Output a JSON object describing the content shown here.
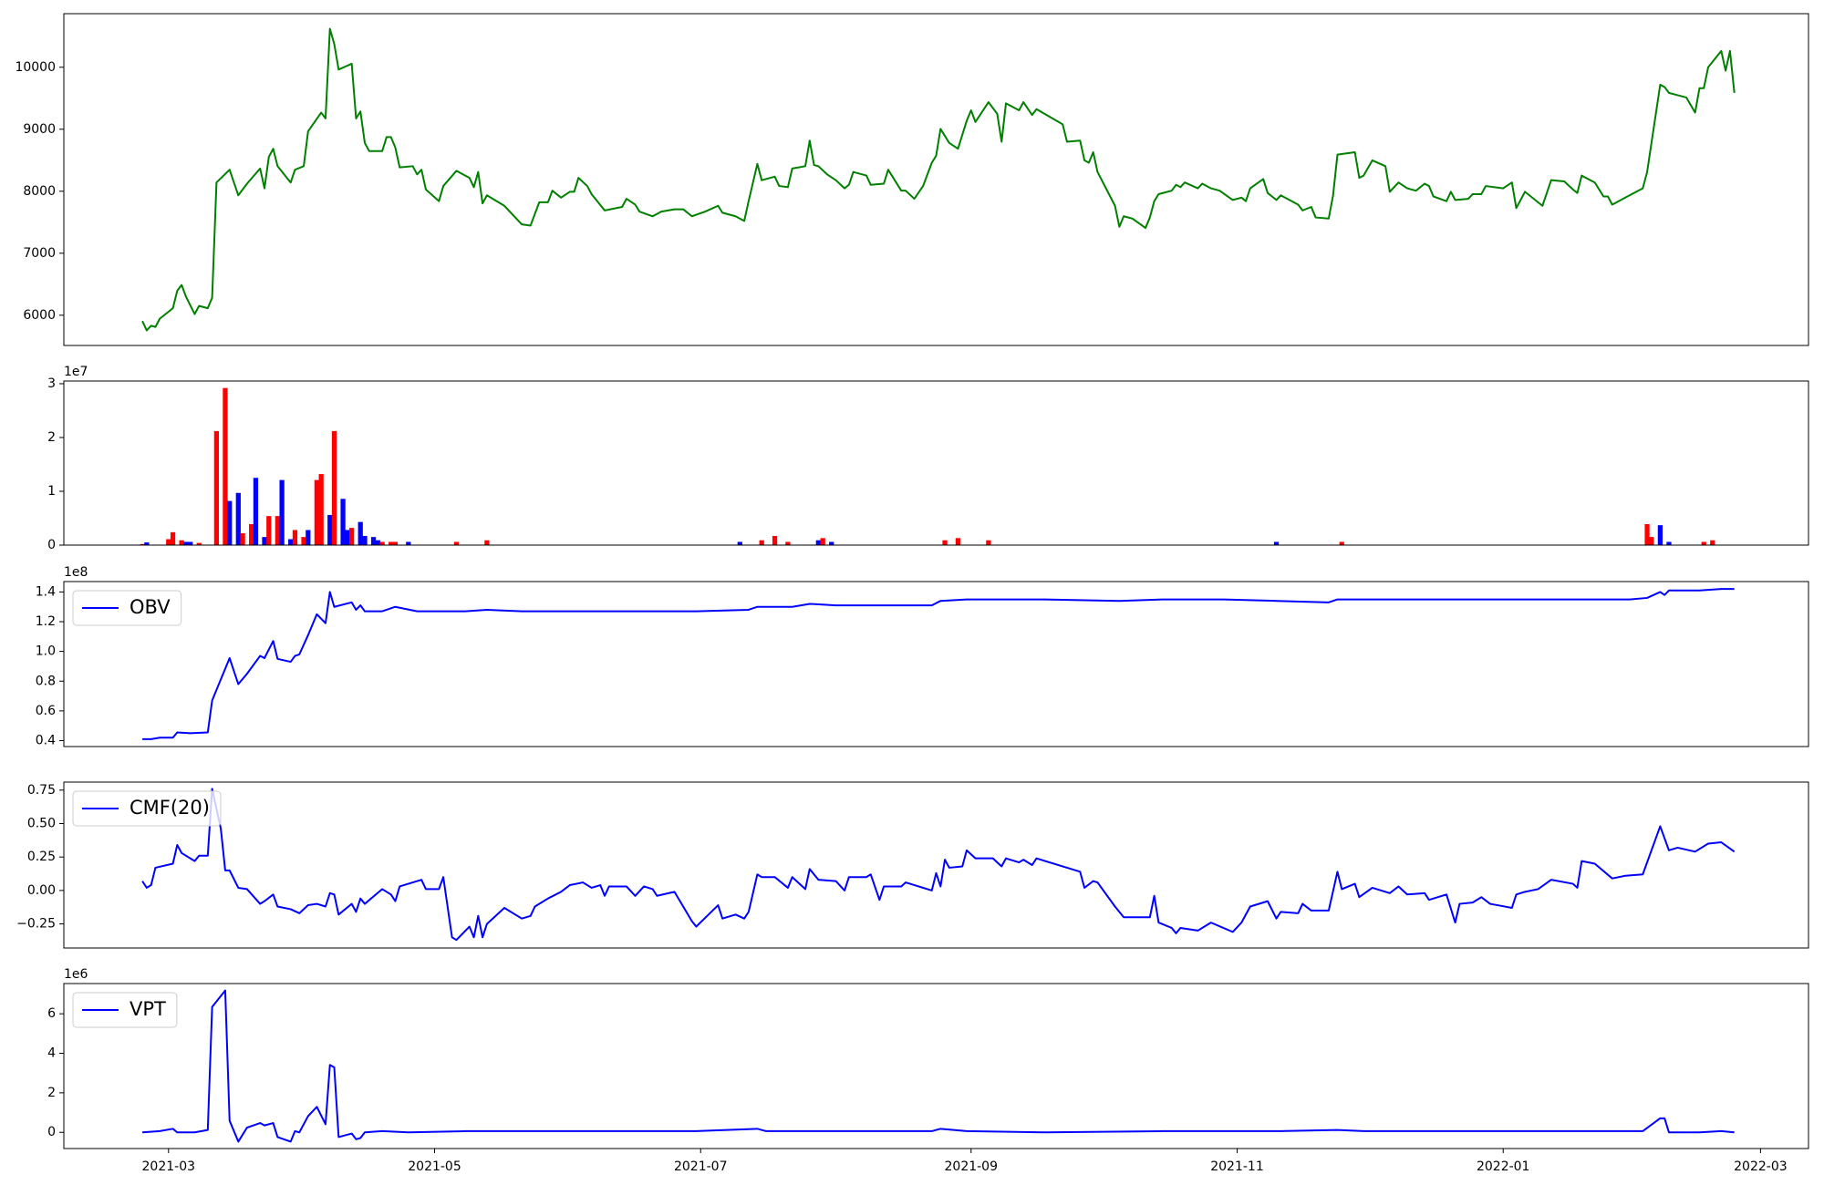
{
  "chart_data": [
    {
      "type": "line",
      "color": "#008000",
      "x": [
        -6,
        -5,
        -4,
        -3,
        -2,
        1,
        2,
        3,
        4,
        6,
        7,
        9,
        10,
        11,
        14,
        16,
        18,
        21,
        22,
        23,
        24,
        25,
        28,
        29,
        31,
        32,
        35,
        36,
        37,
        38,
        39,
        42,
        43,
        44,
        45,
        46,
        49,
        50,
        51,
        52,
        53,
        56,
        57,
        58,
        59,
        62,
        63,
        66,
        69,
        70,
        71,
        72,
        73,
        77,
        81,
        83,
        85,
        87,
        88,
        90,
        92,
        93,
        94,
        96,
        97,
        100,
        104,
        105,
        107,
        108,
        111,
        113,
        116,
        118,
        120,
        123,
        126,
        127,
        130,
        132,
        133,
        135,
        136,
        139,
        140,
        142,
        143,
        146,
        147,
        148,
        149,
        151,
        153,
        155,
        156,
        157,
        160,
        161,
        164,
        165,
        168,
        169,
        171,
        173,
        175,
        176,
        177,
        179,
        181,
        183,
        184,
        185,
        188,
        190,
        191,
        192,
        195,
        196,
        198,
        199,
        205,
        206,
        209,
        210,
        211,
        212,
        213,
        217,
        218,
        219,
        221,
        224,
        225,
        226,
        227,
        230,
        231,
        232,
        233,
        236,
        237,
        239,
        241,
        244,
        246,
        247,
        248,
        251,
        252,
        254,
        255,
        259,
        260,
        262,
        263,
        266,
        267,
        268,
        272,
        273,
        274,
        276,
        279,
        280,
        282,
        284,
        286,
        288,
        289,
        290,
        293,
        294,
        295,
        298,
        299,
        301,
        302,
        306,
        308,
        309,
        311,
        315,
        317,
        320,
        322,
        323,
        324,
        327,
        329,
        330,
        331,
        334,
        338,
        339,
        342,
        343,
        344,
        346,
        348,
        350,
        351,
        352,
        353,
        356,
        357,
        358,
        359
      ],
      "values": [
        5906,
        5756,
        5830,
        5812,
        5944,
        6113,
        6394,
        6488,
        6300,
        6019,
        6150,
        6113,
        6282,
        8141,
        8347,
        7934,
        8122,
        8366,
        8047,
        8554,
        8685,
        8404,
        8141,
        8347,
        8404,
        8967,
        9268,
        9174,
        10620,
        10375,
        9962,
        10056,
        9174,
        9287,
        8779,
        8648,
        8648,
        8873,
        8873,
        8704,
        8385,
        8404,
        8272,
        8347,
        8028,
        7840,
        8084,
        8329,
        8216,
        8066,
        8310,
        7803,
        7934,
        7765,
        7465,
        7446,
        7822,
        7822,
        8009,
        7897,
        7991,
        7991,
        8216,
        8084,
        7953,
        7690,
        7747,
        7878,
        7784,
        7671,
        7596,
        7671,
        7709,
        7709,
        7596,
        7671,
        7765,
        7653,
        7596,
        7521,
        7840,
        8441,
        8178,
        8235,
        8084,
        8066,
        8366,
        8404,
        8817,
        8422,
        8404,
        8272,
        8178,
        8047,
        8103,
        8310,
        8253,
        8103,
        8122,
        8347,
        8009,
        8009,
        7878,
        8084,
        8460,
        8573,
        9005,
        8779,
        8685,
        9136,
        9305,
        9117,
        9437,
        9249,
        8798,
        9418,
        9305,
        9437,
        9230,
        9324,
        9080,
        8798,
        8817,
        8498,
        8460,
        8629,
        8310,
        7765,
        7427,
        7596,
        7559,
        7408,
        7577,
        7840,
        7953,
        8009,
        8103,
        8066,
        8141,
        8047,
        8122,
        8047,
        8009,
        7859,
        7897,
        7840,
        8047,
        8197,
        7972,
        7859,
        7934,
        7784,
        7690,
        7747,
        7577,
        7559,
        7934,
        8591,
        8629,
        8216,
        8253,
        8498,
        8404,
        7991,
        8141,
        8047,
        8009,
        8122,
        8084,
        7916,
        7840,
        7991,
        7859,
        7878,
        7953,
        7953,
        8084,
        8047,
        8141,
        7728,
        7991,
        7765,
        8178,
        8159,
        8028,
        7972,
        8253,
        8141,
        7916,
        7916,
        7784,
        7897,
        8047,
        8310,
        9718,
        9681,
        9587,
        9549,
        9512,
        9268,
        9662,
        9662,
        10000,
        10263,
        9944,
        10263,
        9587
      ],
      "xlim": [
        -24,
        376
      ],
      "ylim": [
        5512,
        10864
      ],
      "yticks": [
        6000,
        7000,
        8000,
        9000,
        10000
      ]
    },
    {
      "type": "bar",
      "offset_label": "1e7",
      "x": [
        -6,
        -5,
        0,
        1,
        3,
        4,
        5,
        7,
        11,
        13,
        14,
        16,
        17,
        19,
        20,
        22,
        23,
        25,
        26,
        28,
        29,
        31,
        32,
        34,
        35,
        37,
        38,
        40,
        41,
        42,
        44,
        45,
        47,
        48,
        49,
        51,
        52,
        55,
        66,
        73,
        131,
        136,
        139,
        142,
        149,
        150,
        152,
        178,
        181,
        188,
        254,
        269,
        339,
        340,
        342,
        344,
        352,
        354
      ],
      "values": [
        0.02,
        0.05,
        0.11,
        0.24,
        0.09,
        0.06,
        0.06,
        0.04,
        2.12,
        2.92,
        0.82,
        0.97,
        0.22,
        0.39,
        1.25,
        0.15,
        0.54,
        0.54,
        1.21,
        0.11,
        0.28,
        0.15,
        0.28,
        1.21,
        1.32,
        0.56,
        2.12,
        0.86,
        0.28,
        0.32,
        0.43,
        0.17,
        0.15,
        0.09,
        0.06,
        0.06,
        0.06,
        0.06,
        0.06,
        0.09,
        0.06,
        0.09,
        0.17,
        0.06,
        0.09,
        0.13,
        0.06,
        0.09,
        0.13,
        0.09,
        0.06,
        0.06,
        0.39,
        0.15,
        0.37,
        0.06,
        0.06,
        0.09
      ],
      "colors": [
        "#ff0000",
        "#0000ff",
        "#ff0000",
        "#ff0000",
        "#ff0000",
        "#0000ff",
        "#0000ff",
        "#ff0000",
        "#ff0000",
        "#ff0000",
        "#0000ff",
        "#0000ff",
        "#ff0000",
        "#ff0000",
        "#0000ff",
        "#0000ff",
        "#ff0000",
        "#ff0000",
        "#0000ff",
        "#0000ff",
        "#ff0000",
        "#ff0000",
        "#0000ff",
        "#ff0000",
        "#ff0000",
        "#0000ff",
        "#ff0000",
        "#0000ff",
        "#0000ff",
        "#ff0000",
        "#0000ff",
        "#0000ff",
        "#0000ff",
        "#0000ff",
        "#ff0000",
        "#ff0000",
        "#ff0000",
        "#0000ff",
        "#ff0000",
        "#ff0000",
        "#0000ff",
        "#ff0000",
        "#ff0000",
        "#ff0000",
        "#0000ff",
        "#ff0000",
        "#0000ff",
        "#ff0000",
        "#ff0000",
        "#ff0000",
        "#0000ff",
        "#ff0000",
        "#ff0000",
        "#ff0000",
        "#0000ff",
        "#0000ff",
        "#ff0000",
        "#ff0000"
      ],
      "xlim": [
        -24,
        376
      ],
      "ylim": [
        0,
        3.05
      ],
      "yticks": [
        0,
        1,
        2,
        3
      ]
    },
    {
      "type": "line",
      "offset_label": "1e8",
      "legend": "upper left",
      "x": [
        -6,
        -4,
        -2,
        1,
        2,
        5,
        9,
        10,
        14,
        16,
        18,
        21,
        22,
        24,
        25,
        28,
        29,
        30,
        32,
        34,
        36,
        37,
        38,
        42,
        43,
        44,
        45,
        49,
        52,
        57,
        63,
        68,
        73,
        81,
        95,
        108,
        121,
        133,
        135,
        143,
        147,
        153,
        164,
        175,
        177,
        183,
        188,
        201,
        218,
        228,
        242,
        254,
        266,
        268,
        282,
        308,
        335,
        339,
        342,
        343,
        344,
        351,
        356,
        359
      ],
      "series": [
        {
          "name": "OBV",
          "color": "#0000ff",
          "values": [
            0.41,
            0.41,
            0.42,
            0.42,
            0.455,
            0.45,
            0.455,
            0.67,
            0.955,
            0.78,
            0.85,
            0.97,
            0.955,
            1.07,
            0.95,
            0.93,
            0.97,
            0.98,
            1.11,
            1.25,
            1.19,
            1.4,
            1.3,
            1.33,
            1.28,
            1.31,
            1.27,
            1.27,
            1.3,
            1.27,
            1.27,
            1.27,
            1.28,
            1.27,
            1.27,
            1.27,
            1.27,
            1.28,
            1.3,
            1.3,
            1.32,
            1.31,
            1.31,
            1.31,
            1.34,
            1.35,
            1.35,
            1.35,
            1.34,
            1.35,
            1.35,
            1.34,
            1.33,
            1.35,
            1.35,
            1.35,
            1.35,
            1.36,
            1.4,
            1.38,
            1.41,
            1.41,
            1.42,
            1.42
          ]
        }
      ],
      "xlim": [
        -24,
        376
      ],
      "ylim": [
        0.36,
        1.47
      ],
      "yticks": [
        0.4,
        0.6,
        0.8,
        {
          "value": 1,
          "label": "1.0"
        },
        1.2,
        1.4
      ]
    },
    {
      "type": "line",
      "legend": "upper left",
      "x": [
        -6,
        -5,
        -4,
        -3,
        1,
        2,
        3,
        6,
        7,
        9,
        10,
        12,
        13,
        14,
        16,
        18,
        21,
        22,
        24,
        25,
        28,
        30,
        32,
        34,
        36,
        37,
        38,
        39,
        42,
        43,
        44,
        45,
        49,
        51,
        52,
        53,
        56,
        58,
        59,
        62,
        63,
        65,
        66,
        69,
        70,
        71,
        72,
        73,
        77,
        81,
        83,
        84,
        87,
        90,
        92,
        95,
        97,
        99,
        100,
        101,
        105,
        107,
        109,
        111,
        112,
        116,
        120,
        121,
        126,
        127,
        130,
        132,
        133,
        135,
        136,
        139,
        142,
        143,
        146,
        147,
        149,
        153,
        155,
        156,
        160,
        161,
        163,
        164,
        168,
        169,
        175,
        176,
        177,
        178,
        179,
        182,
        183,
        185,
        189,
        191,
        192,
        195,
        196,
        198,
        199,
        209,
        210,
        212,
        213,
        217,
        219,
        225,
        226,
        227,
        230,
        231,
        232,
        236,
        239,
        244,
        246,
        248,
        252,
        254,
        255,
        259,
        260,
        262,
        266,
        268,
        269,
        272,
        273,
        276,
        280,
        282,
        284,
        288,
        289,
        293,
        295,
        296,
        299,
        301,
        303,
        308,
        309,
        311,
        314,
        317,
        322,
        323,
        324,
        327,
        331,
        334,
        338,
        342,
        344,
        346,
        350,
        353,
        356,
        359
      ],
      "series": [
        {
          "name": "CMF(20)",
          "color": "#0000ff",
          "values": [
            0.07,
            0.02,
            0.04,
            0.17,
            0.2,
            0.34,
            0.28,
            0.22,
            0.26,
            0.26,
            0.76,
            0.46,
            0.15,
            0.15,
            0.02,
            0.01,
            -0.1,
            -0.08,
            -0.03,
            -0.12,
            -0.14,
            -0.17,
            -0.11,
            -0.1,
            -0.12,
            -0.02,
            -0.03,
            -0.18,
            -0.1,
            -0.16,
            -0.06,
            -0.1,
            0.01,
            -0.03,
            -0.08,
            0.03,
            0.06,
            0.08,
            0.01,
            0.01,
            0.1,
            -0.35,
            -0.37,
            -0.27,
            -0.35,
            -0.19,
            -0.35,
            -0.25,
            -0.13,
            -0.21,
            -0.19,
            -0.12,
            -0.06,
            -0.01,
            0.04,
            0.06,
            0.02,
            0.04,
            -0.04,
            0.03,
            0.03,
            -0.04,
            0.03,
            0.01,
            -0.04,
            -0.01,
            -0.23,
            -0.27,
            -0.11,
            -0.21,
            -0.18,
            -0.21,
            -0.16,
            0.12,
            0.1,
            0.1,
            0.02,
            0.1,
            0.01,
            0.16,
            0.08,
            0.07,
            0,
            0.1,
            0.1,
            0.12,
            -0.07,
            0.03,
            0.03,
            0.06,
            0,
            0.13,
            0.03,
            0.23,
            0.17,
            0.18,
            0.3,
            0.24,
            0.24,
            0.18,
            0.24,
            0.21,
            0.23,
            0.19,
            0.24,
            0.14,
            0.02,
            0.07,
            0.06,
            -0.12,
            -0.2,
            -0.2,
            -0.04,
            -0.24,
            -0.28,
            -0.32,
            -0.28,
            -0.3,
            -0.24,
            -0.31,
            -0.24,
            -0.12,
            -0.08,
            -0.21,
            -0.16,
            -0.17,
            -0.1,
            -0.15,
            -0.15,
            0.14,
            0.01,
            0.05,
            -0.05,
            0.02,
            -0.02,
            0.03,
            -0.03,
            -0.02,
            -0.07,
            -0.03,
            -0.24,
            -0.1,
            -0.09,
            -0.05,
            -0.1,
            -0.13,
            -0.03,
            -0.01,
            0.01,
            0.08,
            0.05,
            0.02,
            0.22,
            0.2,
            0.09,
            0.11,
            0.12,
            0.48,
            0.3,
            0.32,
            0.29,
            0.35,
            0.36,
            0.29
          ]
        }
      ],
      "xlim": [
        -24,
        376
      ],
      "ylim": [
        -0.43,
        0.81
      ],
      "yticks": [
        {
          "value": -0.25,
          "label": "−0.25"
        },
        {
          "value": 0,
          "label": "0.00"
        },
        0.25,
        {
          "value": 0.5,
          "label": "0.50"
        },
        0.75
      ]
    },
    {
      "type": "line",
      "offset_label": "1e6",
      "legend": "upper left",
      "x": [
        -6,
        -2,
        1,
        2,
        6,
        9,
        10,
        13,
        14,
        16,
        18,
        21,
        22,
        24,
        25,
        28,
        29,
        30,
        32,
        34,
        36,
        37,
        38,
        39,
        42,
        43,
        44,
        45,
        49,
        55,
        68,
        95,
        121,
        135,
        137,
        148,
        175,
        177,
        183,
        201,
        228,
        255,
        268,
        274,
        308,
        338,
        342,
        343,
        344,
        351,
        356,
        359
      ],
      "series": [
        {
          "name": "VPT",
          "color": "#0000ff",
          "values": [
            0,
            0.06,
            0.18,
            0,
            0,
            0.12,
            6.35,
            7.18,
            0.59,
            -0.47,
            0.24,
            0.47,
            0.35,
            0.47,
            -0.24,
            -0.47,
            0.06,
            0,
            0.82,
            1.29,
            0.41,
            3.41,
            3.29,
            -0.24,
            -0.06,
            -0.35,
            -0.29,
            0,
            0.06,
            0,
            0.06,
            0.06,
            0.06,
            0.18,
            0.06,
            0.06,
            0.06,
            0.18,
            0.06,
            0,
            0.06,
            0.06,
            0.12,
            0.06,
            0.06,
            0.06,
            0.71,
            0.71,
            0,
            0,
            0.06,
            0
          ]
        }
      ],
      "xlim": [
        -24,
        376
      ],
      "ylim": [
        -0.82,
        7.53
      ],
      "yticks": [
        0,
        2,
        4,
        6
      ],
      "xticks": [
        {
          "value": 0,
          "label": "2021-03"
        },
        {
          "value": 61,
          "label": "2021-05"
        },
        {
          "value": 122,
          "label": "2021-07"
        },
        {
          "value": 184,
          "label": "2021-09"
        },
        {
          "value": 245,
          "label": "2021-11"
        },
        {
          "value": 306,
          "label": "2022-01"
        },
        {
          "value": 365,
          "label": "2022-03"
        }
      ]
    }
  ]
}
